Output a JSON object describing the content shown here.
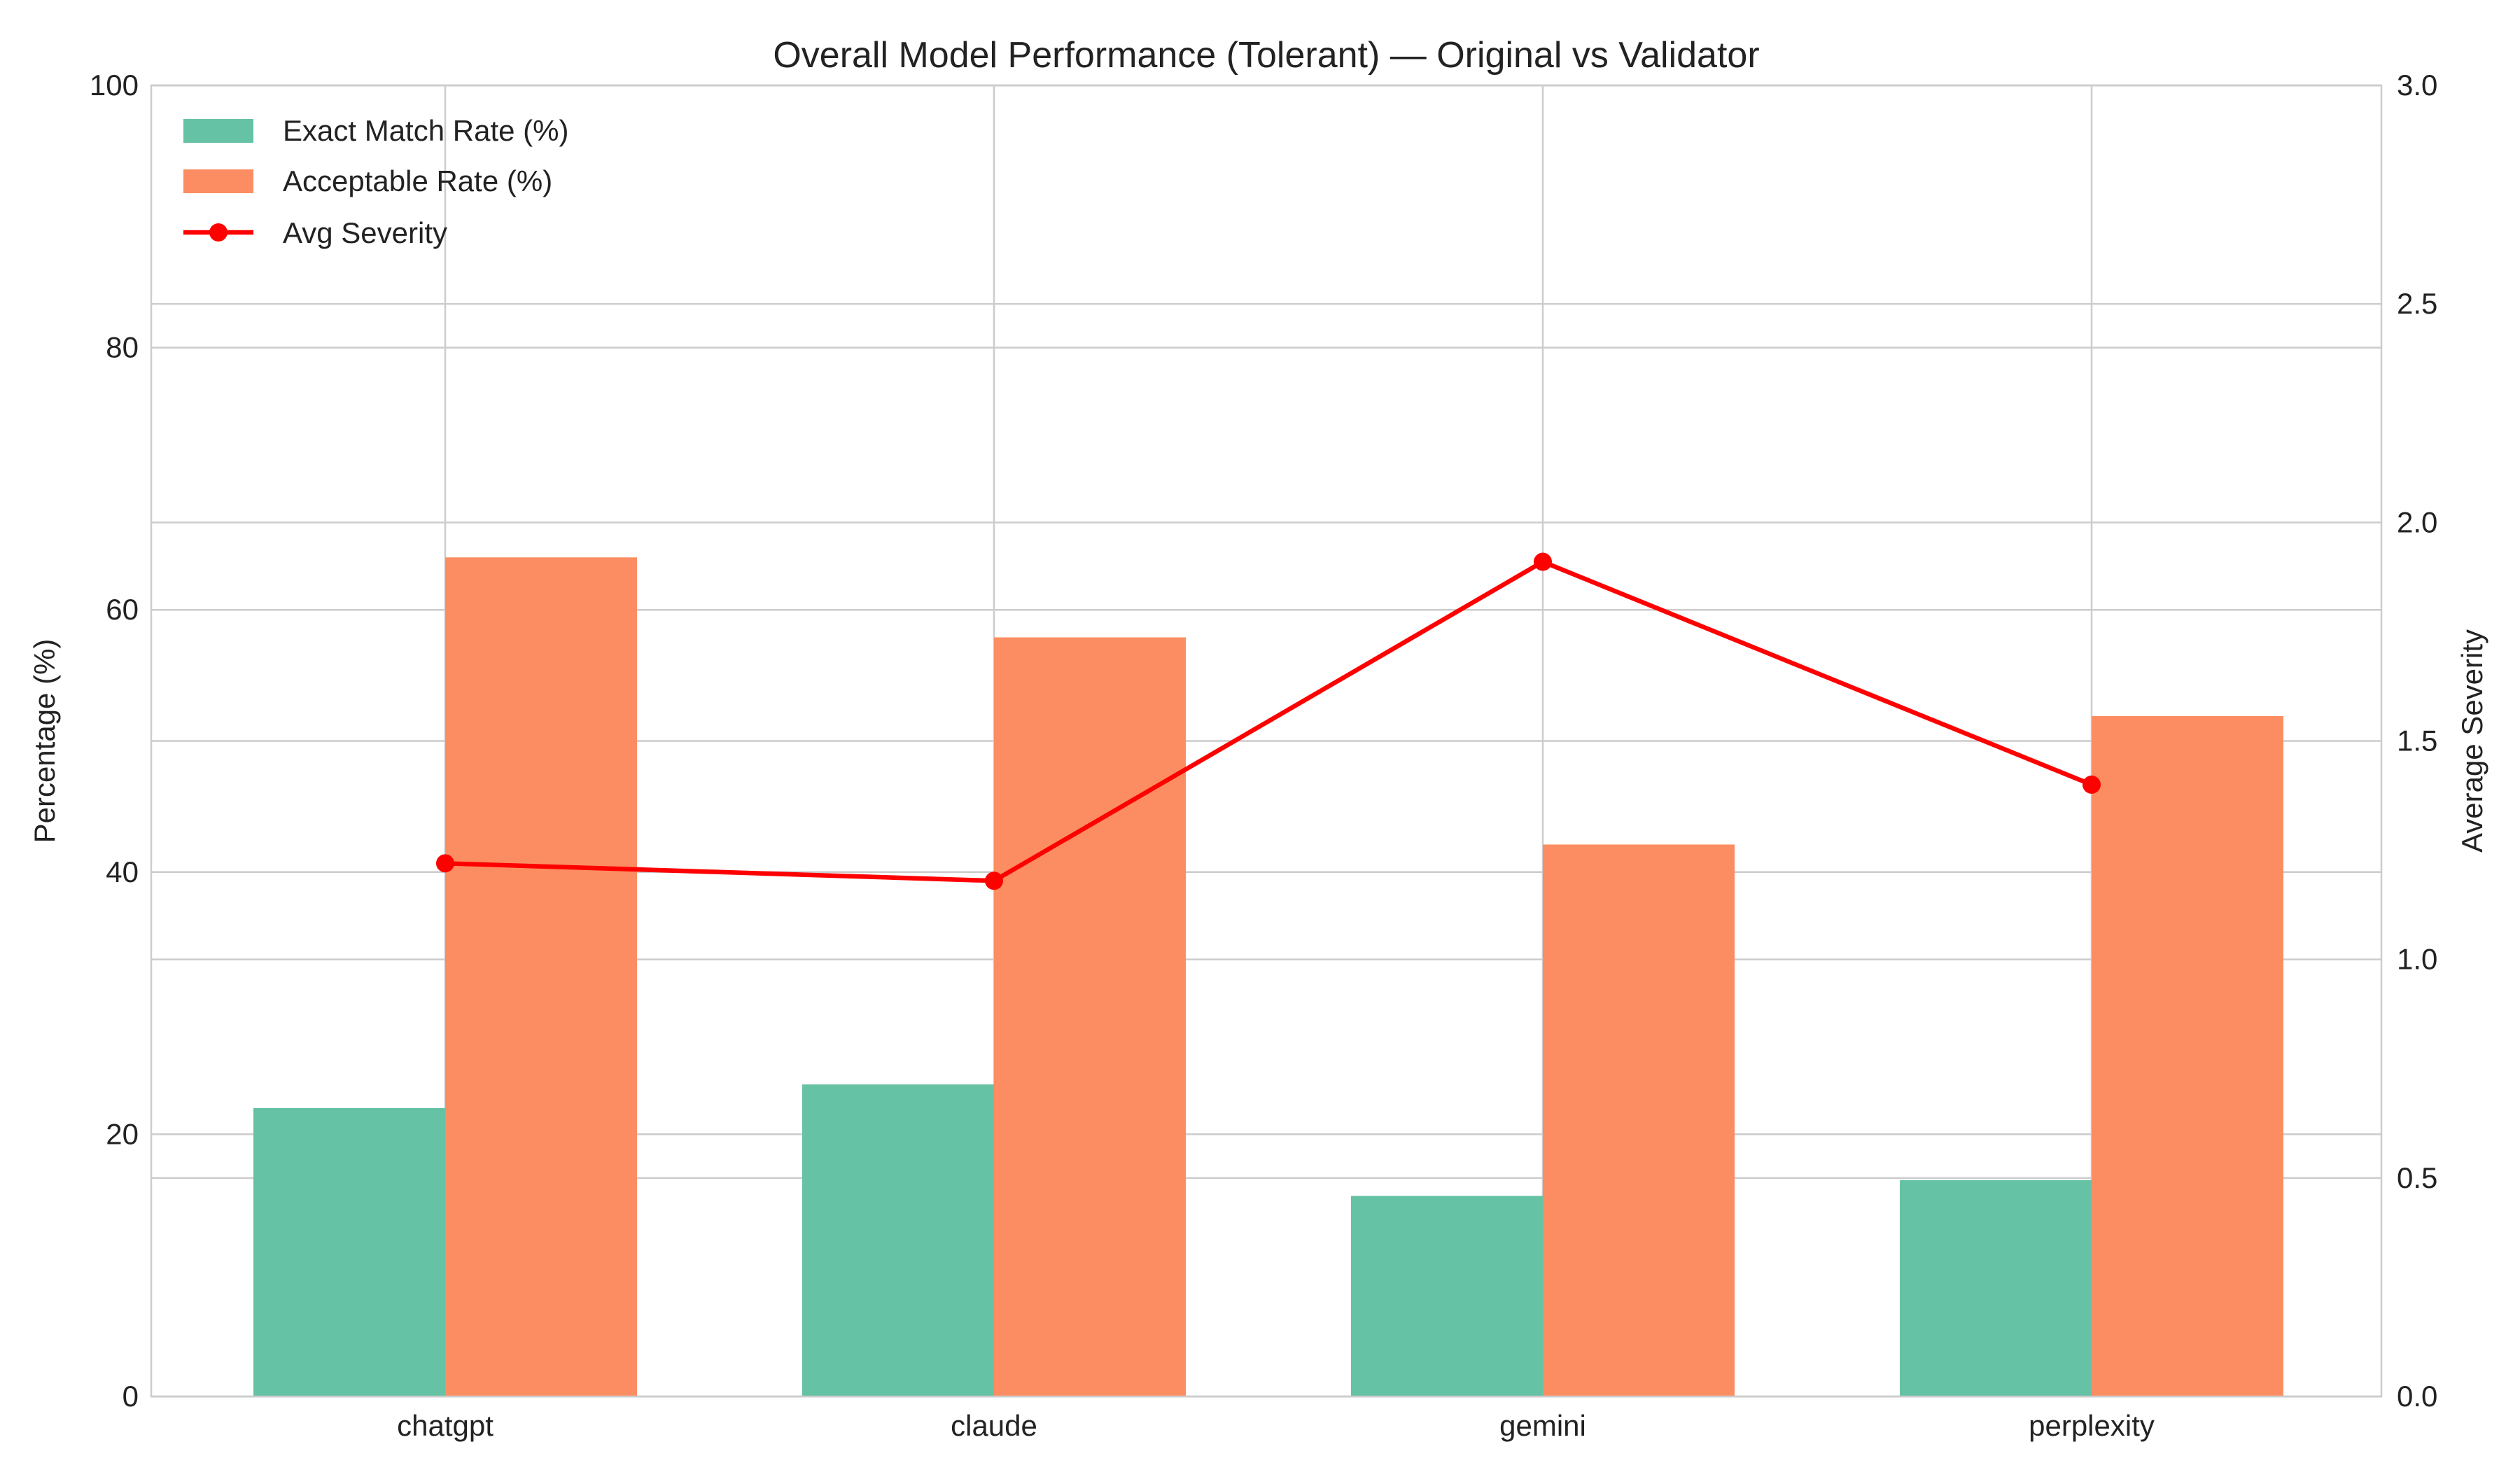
{
  "chart_data": {
    "type": "bar",
    "title": "Overall Model Performance (Tolerant) — Original vs Validator",
    "categories": [
      "chatgpt",
      "claude",
      "gemini",
      "perplexity"
    ],
    "series": [
      {
        "name": "Exact Match Rate (%)",
        "type": "bar",
        "axis": "left",
        "color": "#66c2a5",
        "values": [
          22.0,
          23.8,
          15.3,
          16.5
        ]
      },
      {
        "name": "Acceptable Rate (%)",
        "type": "bar",
        "axis": "left",
        "color": "#fc8d62",
        "values": [
          64.0,
          57.9,
          42.1,
          51.9
        ]
      },
      {
        "name": "Avg Severity",
        "type": "line",
        "axis": "right",
        "color": "#ff0000",
        "values": [
          1.22,
          1.18,
          1.91,
          1.4
        ]
      }
    ],
    "ylabel": "Percentage (%)",
    "y2label": "Average Severity",
    "ylim": [
      0,
      100
    ],
    "y2lim": [
      0,
      3.0
    ],
    "yticks": [
      "0",
      "20",
      "40",
      "60",
      "80",
      "100"
    ],
    "y2ticks": [
      "0.0",
      "0.5",
      "1.0",
      "1.5",
      "2.0",
      "2.5",
      "3.0"
    ],
    "grid": true,
    "legend_position": "top-left"
  }
}
